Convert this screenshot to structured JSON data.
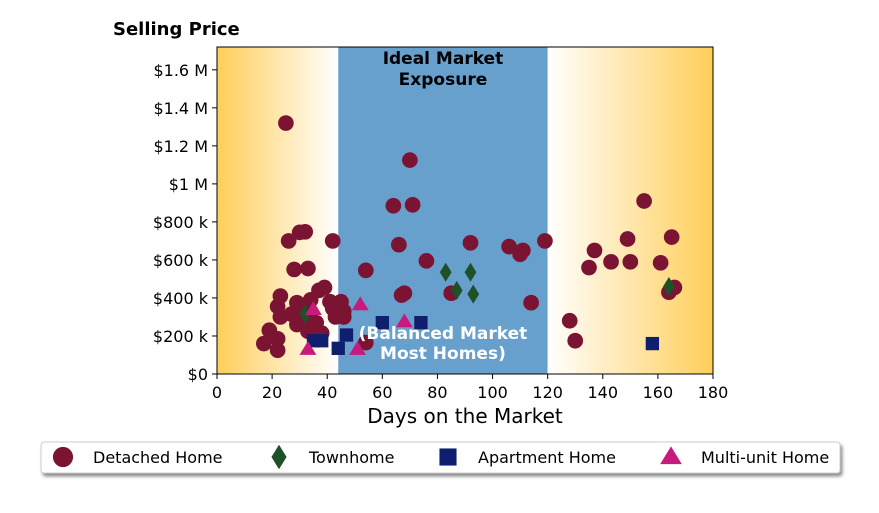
{
  "chart_data": {
    "type": "scatter",
    "ylabel": "Selling Price",
    "xlabel": "Days on the Market",
    "xlim": [
      0,
      180
    ],
    "ylim": [
      0,
      1720000
    ],
    "x_ticks": [
      0,
      20,
      40,
      60,
      80,
      100,
      120,
      140,
      160,
      180
    ],
    "x_tick_labels": [
      "0",
      "20",
      "40",
      "60",
      "80",
      "100",
      "120",
      "140",
      "160",
      "180"
    ],
    "y_ticks": [
      0,
      200000,
      400000,
      600000,
      800000,
      1000000,
      1200000,
      1400000,
      1600000
    ],
    "y_tick_labels": [
      "$0",
      "$200 k",
      "$400 k",
      "$600 k",
      "$800 k",
      "$1 M",
      "$1.2 M",
      "$1.4 M",
      "$1.6 M"
    ],
    "grid": false,
    "legend_position": "bottom",
    "bands": [
      {
        "x_start": 0,
        "x_end": 44,
        "fill": "gradient",
        "colors": [
          "#ffce5a",
          "#ffffff"
        ]
      },
      {
        "x_start": 44,
        "x_end": 120,
        "fill": "#679fcd",
        "label_lines": [
          "Ideal Market",
          "Exposure"
        ],
        "label_color": "#000000"
      },
      {
        "x_start": 120,
        "x_end": 180,
        "fill": "gradient",
        "colors": [
          "#ffffff",
          "#ffce5a"
        ]
      }
    ],
    "band_bottom_label_lines": [
      "(Balanced Market",
      "Most Homes)"
    ],
    "band_bottom_label_color": "#ffffff",
    "series": [
      {
        "name": "Detached Home",
        "marker": "circle",
        "color": "#7b1432",
        "points": [
          [
            25,
            1320000
          ],
          [
            70,
            1125000
          ],
          [
            155,
            910000
          ],
          [
            64,
            885000
          ],
          [
            71,
            890000
          ],
          [
            30,
            745000
          ],
          [
            32,
            748000
          ],
          [
            26,
            700000
          ],
          [
            42,
            700000
          ],
          [
            119,
            700000
          ],
          [
            149,
            710000
          ],
          [
            165,
            720000
          ],
          [
            92,
            690000
          ],
          [
            66,
            680000
          ],
          [
            106,
            670000
          ],
          [
            111,
            650000
          ],
          [
            137,
            650000
          ],
          [
            110,
            630000
          ],
          [
            76,
            595000
          ],
          [
            143,
            590000
          ],
          [
            150,
            590000
          ],
          [
            161,
            585000
          ],
          [
            135,
            560000
          ],
          [
            28,
            550000
          ],
          [
            33,
            555000
          ],
          [
            54,
            545000
          ],
          [
            39,
            455000
          ],
          [
            37,
            440000
          ],
          [
            85,
            425000
          ],
          [
            68,
            425000
          ],
          [
            67,
            415000
          ],
          [
            164,
            430000
          ],
          [
            166,
            455000
          ],
          [
            23,
            410000
          ],
          [
            34,
            390000
          ],
          [
            29,
            375000
          ],
          [
            41,
            380000
          ],
          [
            45,
            380000
          ],
          [
            114,
            375000
          ],
          [
            22,
            355000
          ],
          [
            30,
            350000
          ],
          [
            42,
            345000
          ],
          [
            46,
            330000
          ],
          [
            27,
            315000
          ],
          [
            33,
            320000
          ],
          [
            44,
            320000
          ],
          [
            23,
            300000
          ],
          [
            32,
            300000
          ],
          [
            43,
            300000
          ],
          [
            46,
            300000
          ],
          [
            128,
            280000
          ],
          [
            29,
            260000
          ],
          [
            36,
            270000
          ],
          [
            34,
            250000
          ],
          [
            19,
            230000
          ],
          [
            33,
            225000
          ],
          [
            38,
            215000
          ],
          [
            37,
            200000
          ],
          [
            22,
            185000
          ],
          [
            130,
            175000
          ],
          [
            17,
            160000
          ],
          [
            54,
            165000
          ],
          [
            22,
            125000
          ]
        ]
      },
      {
        "name": "Townhome",
        "marker": "diamond",
        "color": "#1e5128",
        "points": [
          [
            83,
            535000
          ],
          [
            92,
            535000
          ],
          [
            87,
            440000
          ],
          [
            93,
            420000
          ],
          [
            164,
            460000
          ],
          [
            32,
            315000
          ]
        ]
      },
      {
        "name": "Apartment Home",
        "marker": "square",
        "color": "#0f1f6e",
        "points": [
          [
            60,
            270000
          ],
          [
            74,
            270000
          ],
          [
            47,
            205000
          ],
          [
            35,
            175000
          ],
          [
            38,
            175000
          ],
          [
            44,
            135000
          ],
          [
            158,
            160000
          ]
        ]
      },
      {
        "name": "Multi-unit Home",
        "marker": "triangle",
        "color": "#c8197d",
        "points": [
          [
            52,
            365000
          ],
          [
            35,
            340000
          ],
          [
            68,
            275000
          ],
          [
            33,
            130000
          ],
          [
            51,
            130000
          ]
        ]
      }
    ]
  }
}
